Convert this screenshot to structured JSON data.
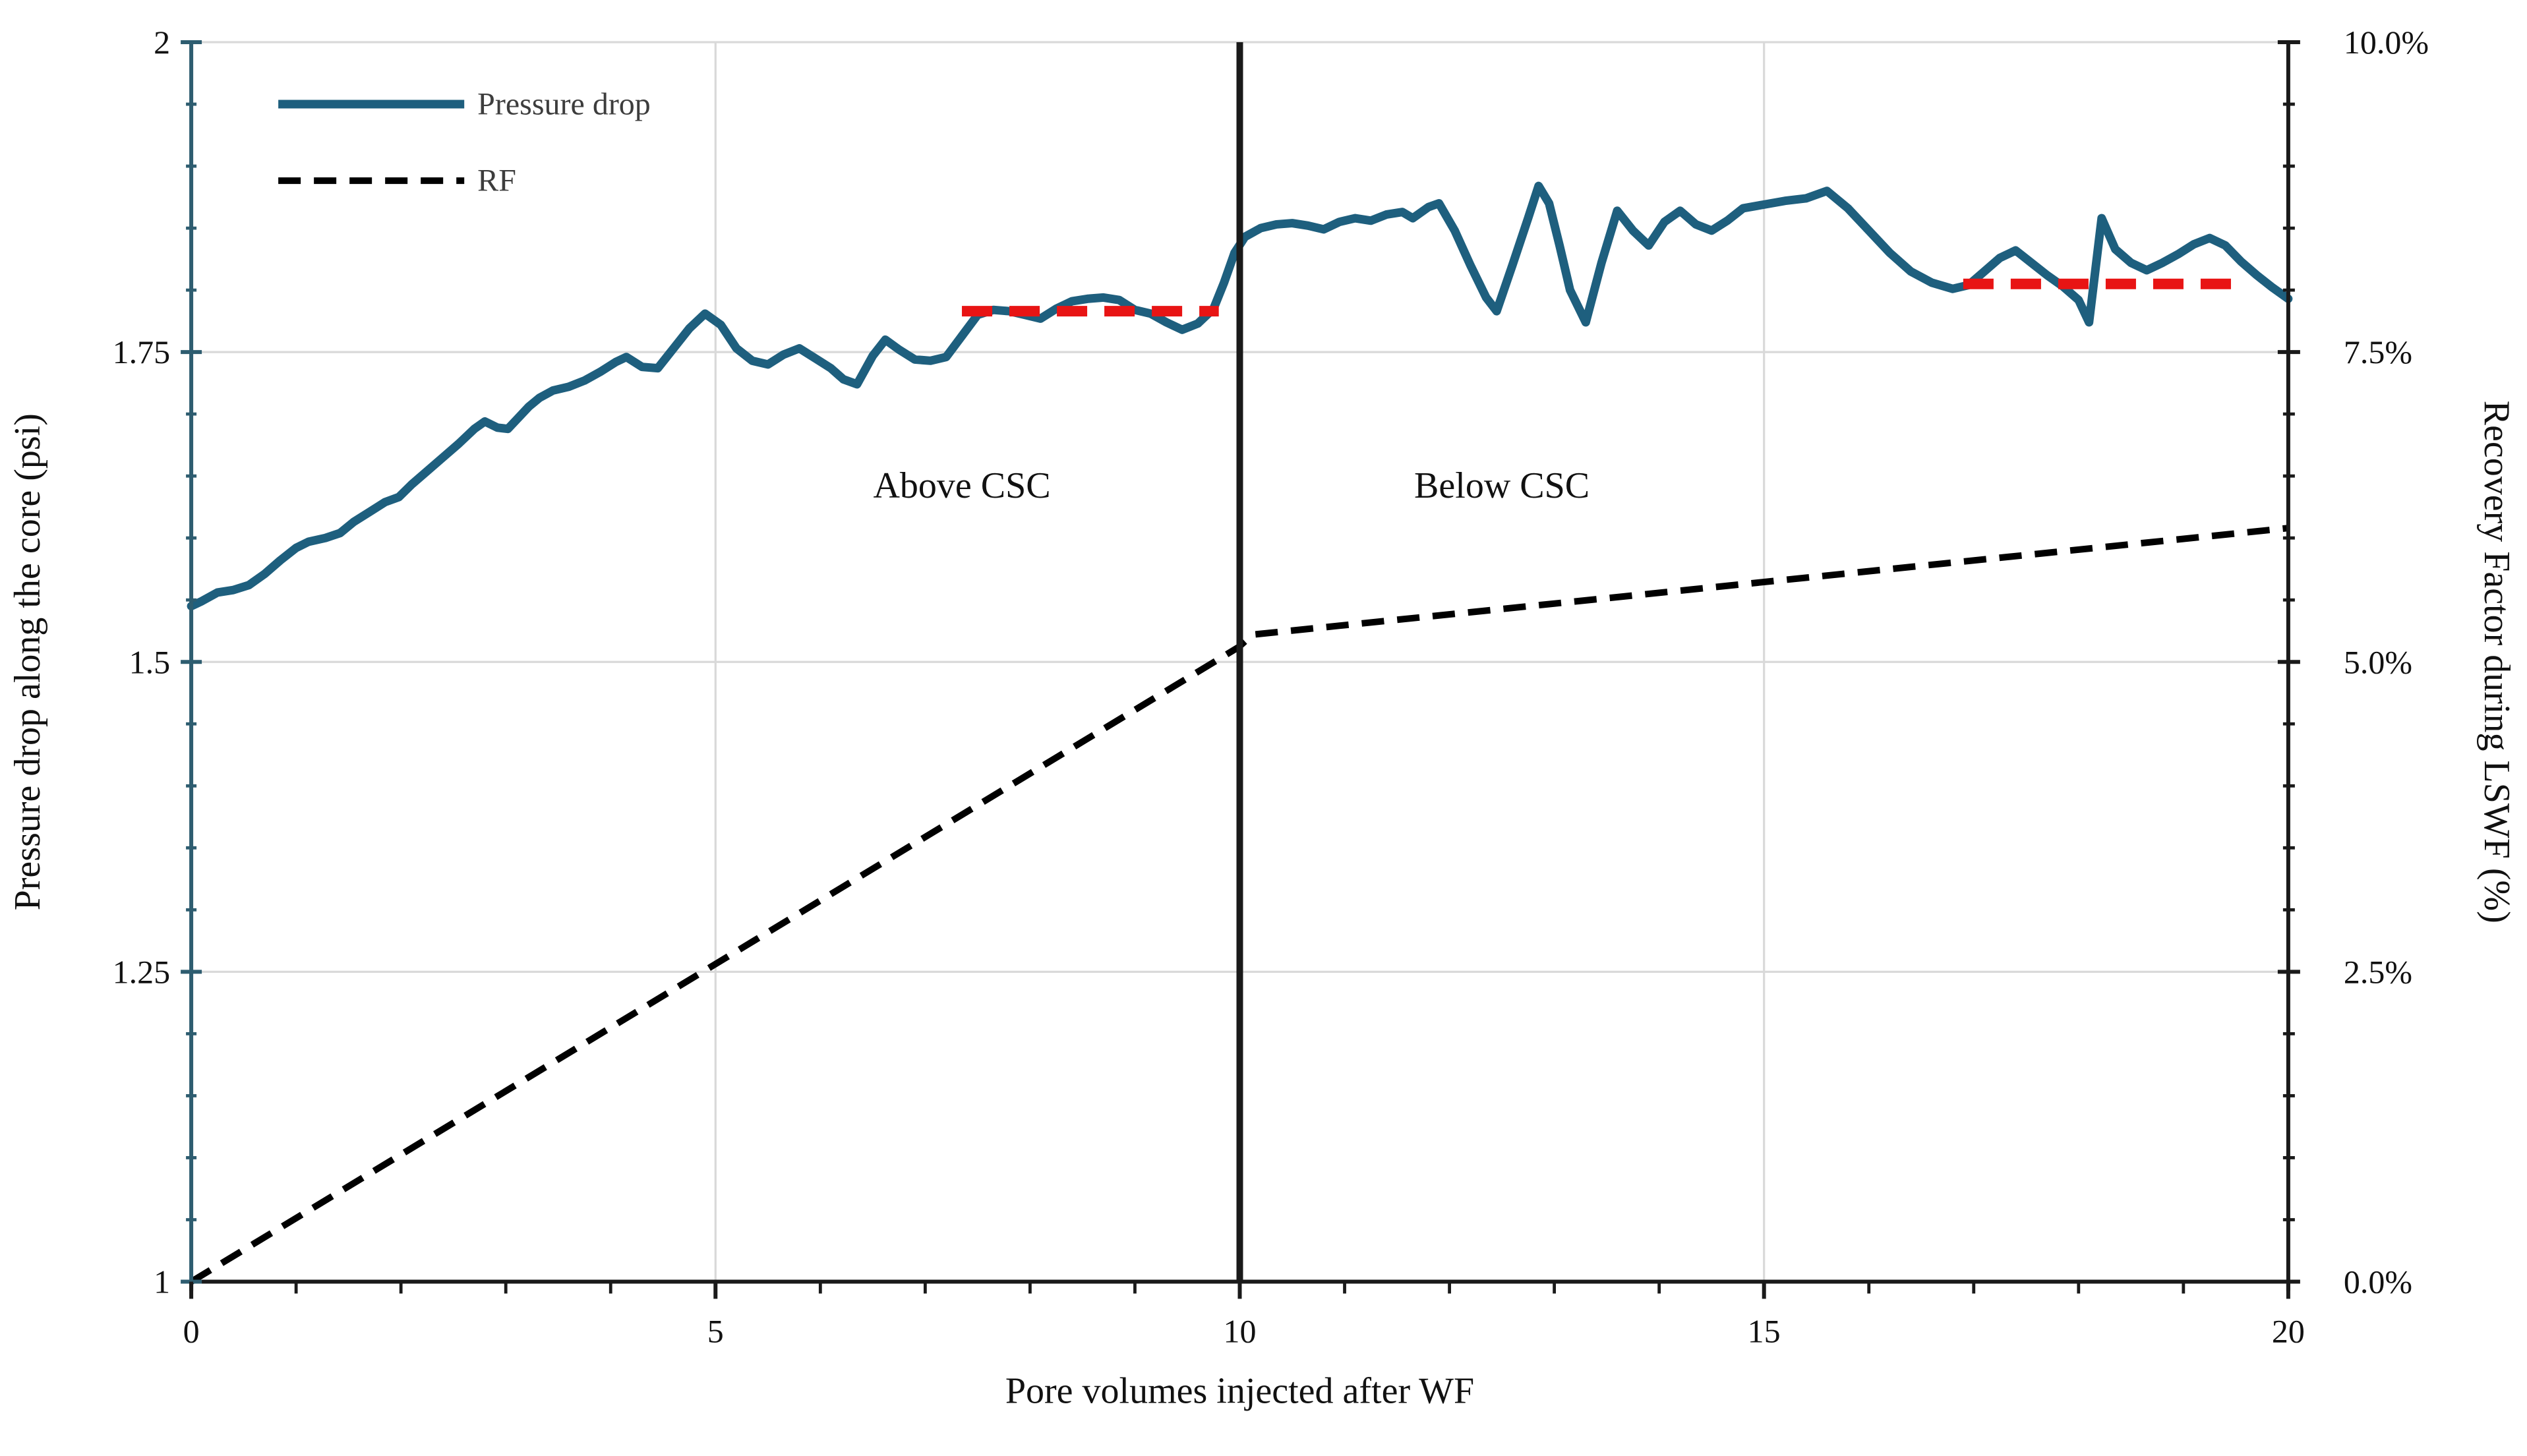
{
  "colors": {
    "pressure_line": "#1e5f7e",
    "rf_line": "#000000",
    "red_reference": "#e81414",
    "gridline": "#d9d9d9",
    "axis_left": "#2e5d70",
    "axis_black": "#1a1a1a",
    "tick_label": "#111111",
    "legend_text": "#3d3d3d",
    "annotation_text": "#111111",
    "background": "#ffffff"
  },
  "chart_data": {
    "type": "line",
    "x_axis": {
      "title": "Pore volumes injected after WF",
      "min": 0,
      "max": 20,
      "major_ticks": [
        0,
        5,
        10,
        15,
        20
      ],
      "major_labels": [
        "0",
        "5",
        "10",
        "15",
        "20"
      ],
      "minor_step": 1,
      "gridlines": [
        5,
        10,
        15
      ]
    },
    "y_left": {
      "title": "Pressure drop along the core (psi)",
      "min": 1,
      "max": 2,
      "major_ticks": [
        1,
        1.25,
        1.5,
        1.75,
        2
      ],
      "major_labels": [
        "1",
        "1.25",
        "1.5",
        "1.75",
        "2"
      ],
      "minor_step": 0.05,
      "gridlines": [
        1.25,
        1.5,
        1.75,
        2
      ]
    },
    "y_right": {
      "title": "Recovery Factor during LSWF (%)",
      "min": 0,
      "max": 10,
      "major_ticks": [
        0,
        2.5,
        5,
        7.5,
        10
      ],
      "major_labels": [
        "0.0%",
        "2.5%",
        "5.0%",
        "7.5%",
        "10.0%"
      ],
      "minor_step": 0.5
    },
    "series": [
      {
        "name": "Pressure drop",
        "axis": "left",
        "style": "solid",
        "points": [
          [
            0,
            1.545
          ],
          [
            0.1,
            1.549
          ],
          [
            0.25,
            1.556
          ],
          [
            0.4,
            1.558
          ],
          [
            0.55,
            1.562
          ],
          [
            0.7,
            1.571
          ],
          [
            0.85,
            1.582
          ],
          [
            1,
            1.592
          ],
          [
            1.12,
            1.597
          ],
          [
            1.28,
            1.6
          ],
          [
            1.42,
            1.604
          ],
          [
            1.55,
            1.613
          ],
          [
            1.7,
            1.621
          ],
          [
            1.85,
            1.629
          ],
          [
            1.98,
            1.633
          ],
          [
            2.1,
            1.643
          ],
          [
            2.25,
            1.654
          ],
          [
            2.4,
            1.665
          ],
          [
            2.55,
            1.676
          ],
          [
            2.7,
            1.688
          ],
          [
            2.8,
            1.694
          ],
          [
            2.92,
            1.689
          ],
          [
            3.02,
            1.688
          ],
          [
            3.12,
            1.697
          ],
          [
            3.22,
            1.706
          ],
          [
            3.32,
            1.713
          ],
          [
            3.45,
            1.719
          ],
          [
            3.6,
            1.722
          ],
          [
            3.75,
            1.727
          ],
          [
            3.9,
            1.734
          ],
          [
            4.05,
            1.742
          ],
          [
            4.15,
            1.746
          ],
          [
            4.3,
            1.738
          ],
          [
            4.45,
            1.737
          ],
          [
            4.6,
            1.753
          ],
          [
            4.75,
            1.769
          ],
          [
            4.9,
            1.781
          ],
          [
            5.05,
            1.772
          ],
          [
            5.2,
            1.753
          ],
          [
            5.35,
            1.743
          ],
          [
            5.5,
            1.74
          ],
          [
            5.65,
            1.748
          ],
          [
            5.8,
            1.753
          ],
          [
            5.95,
            1.745
          ],
          [
            6.1,
            1.737
          ],
          [
            6.22,
            1.728
          ],
          [
            6.35,
            1.724
          ],
          [
            6.5,
            1.747
          ],
          [
            6.62,
            1.76
          ],
          [
            6.75,
            1.752
          ],
          [
            6.9,
            1.744
          ],
          [
            7.05,
            1.743
          ],
          [
            7.2,
            1.746
          ],
          [
            7.35,
            1.763
          ],
          [
            7.5,
            1.78
          ],
          [
            7.65,
            1.784
          ],
          [
            7.8,
            1.783
          ],
          [
            7.95,
            1.78
          ],
          [
            8.1,
            1.777
          ],
          [
            8.25,
            1.785
          ],
          [
            8.4,
            1.791
          ],
          [
            8.55,
            1.793
          ],
          [
            8.7,
            1.794
          ],
          [
            8.85,
            1.792
          ],
          [
            9,
            1.784
          ],
          [
            9.15,
            1.781
          ],
          [
            9.3,
            1.774
          ],
          [
            9.45,
            1.768
          ],
          [
            9.6,
            1.773
          ],
          [
            9.75,
            1.785
          ],
          [
            9.85,
            1.806
          ],
          [
            9.95,
            1.83
          ],
          [
            10.05,
            1.843
          ],
          [
            10.2,
            1.85
          ],
          [
            10.35,
            1.853
          ],
          [
            10.5,
            1.854
          ],
          [
            10.65,
            1.852
          ],
          [
            10.8,
            1.849
          ],
          [
            10.95,
            1.855
          ],
          [
            11.1,
            1.858
          ],
          [
            11.25,
            1.856
          ],
          [
            11.4,
            1.861
          ],
          [
            11.55,
            1.863
          ],
          [
            11.65,
            1.858
          ],
          [
            11.8,
            1.867
          ],
          [
            11.9,
            1.87
          ],
          [
            12.05,
            1.848
          ],
          [
            12.2,
            1.82
          ],
          [
            12.35,
            1.794
          ],
          [
            12.45,
            1.783
          ],
          [
            12.6,
            1.82
          ],
          [
            12.75,
            1.858
          ],
          [
            12.85,
            1.884
          ],
          [
            12.95,
            1.87
          ],
          [
            13.05,
            1.836
          ],
          [
            13.15,
            1.8
          ],
          [
            13.3,
            1.774
          ],
          [
            13.45,
            1.822
          ],
          [
            13.6,
            1.864
          ],
          [
            13.75,
            1.848
          ],
          [
            13.9,
            1.836
          ],
          [
            14.05,
            1.855
          ],
          [
            14.2,
            1.864
          ],
          [
            14.35,
            1.853
          ],
          [
            14.5,
            1.848
          ],
          [
            14.65,
            1.856
          ],
          [
            14.8,
            1.866
          ],
          [
            15,
            1.869
          ],
          [
            15.2,
            1.872
          ],
          [
            15.4,
            1.874
          ],
          [
            15.6,
            1.88
          ],
          [
            15.8,
            1.866
          ],
          [
            16,
            1.848
          ],
          [
            16.2,
            1.83
          ],
          [
            16.4,
            1.815
          ],
          [
            16.6,
            1.806
          ],
          [
            16.8,
            1.801
          ],
          [
            16.95,
            1.804
          ],
          [
            17.1,
            1.815
          ],
          [
            17.25,
            1.826
          ],
          [
            17.4,
            1.832
          ],
          [
            17.55,
            1.822
          ],
          [
            17.7,
            1.812
          ],
          [
            17.85,
            1.803
          ],
          [
            18,
            1.792
          ],
          [
            18.1,
            1.774
          ],
          [
            18.22,
            1.858
          ],
          [
            18.35,
            1.833
          ],
          [
            18.5,
            1.822
          ],
          [
            18.65,
            1.816
          ],
          [
            18.8,
            1.822
          ],
          [
            18.95,
            1.829
          ],
          [
            19.1,
            1.837
          ],
          [
            19.25,
            1.842
          ],
          [
            19.4,
            1.836
          ],
          [
            19.55,
            1.823
          ],
          [
            19.7,
            1.812
          ],
          [
            19.85,
            1.802
          ],
          [
            20,
            1.793
          ]
        ]
      },
      {
        "name": "RF",
        "axis": "right",
        "style": "dashed",
        "points": [
          [
            0,
            0
          ],
          [
            9.99,
            5.12
          ],
          [
            10.12,
            5.22
          ],
          [
            20,
            6.08
          ]
        ]
      }
    ],
    "reference_segments": [
      {
        "y": 1.783,
        "x1": 7.35,
        "x2": 9.8
      },
      {
        "y": 1.805,
        "x1": 16.9,
        "x2": 19.55
      }
    ],
    "marker_line": {
      "x": 10
    },
    "annotations": [
      {
        "text": "Above CSC",
        "x": 7.35,
        "y": 1.642
      },
      {
        "text": "Below CSC",
        "x": 12.5,
        "y": 1.642
      }
    ],
    "legend": {
      "position": "top-left",
      "entries": [
        {
          "label": "Pressure drop",
          "dash": false
        },
        {
          "label": "RF",
          "dash": true
        }
      ]
    }
  }
}
